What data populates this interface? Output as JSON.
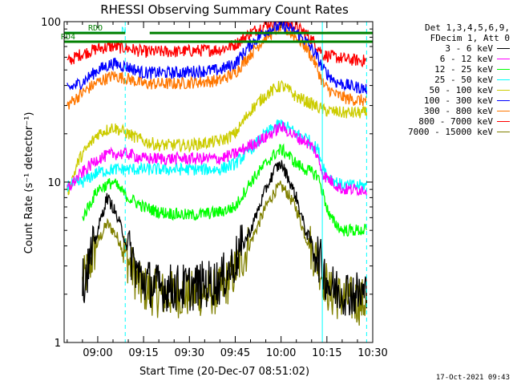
{
  "chart_data": {
    "type": "line",
    "title": "RHESSI Observing Summary Count Rates",
    "xlabel": "Start Time (20-Dec-07 08:51:02)",
    "ylabel": "Count Rate (s⁻¹ detector⁻¹)",
    "yscale": "log",
    "ylim": [
      1,
      100
    ],
    "xlim_minutes": [
      -11,
      90
    ],
    "x_ticks": [
      {
        "t": 0,
        "label": "09:00"
      },
      {
        "t": 15,
        "label": "09:15"
      },
      {
        "t": 30,
        "label": "09:30"
      },
      {
        "t": 45,
        "label": "09:45"
      },
      {
        "t": 60,
        "label": "10:00"
      },
      {
        "t": 75,
        "label": "10:15"
      },
      {
        "t": 90,
        "label": "10:30"
      }
    ],
    "y_ticks": [
      {
        "v": 1,
        "label": "1"
      },
      {
        "v": 10,
        "label": "10"
      },
      {
        "v": 100,
        "label": "100"
      }
    ],
    "legend_header": [
      "Det 1,3,4,5,6,9,",
      "FDecim 1, Att 0"
    ],
    "legend_position": "right",
    "series": [
      {
        "name": "3 - 6 keV",
        "color": "#000000",
        "points": [
          [
            -5,
            2.3
          ],
          [
            -2,
            3.5
          ],
          [
            0,
            5.0
          ],
          [
            3,
            8.0
          ],
          [
            5,
            7.0
          ],
          [
            8,
            5.0
          ],
          [
            10,
            3.8
          ],
          [
            14,
            2.5
          ],
          [
            20,
            2.2
          ],
          [
            30,
            2.2
          ],
          [
            40,
            2.4
          ],
          [
            44,
            3.0
          ],
          [
            50,
            5.0
          ],
          [
            55,
            9.0
          ],
          [
            58,
            12.0
          ],
          [
            60,
            13.0
          ],
          [
            62,
            11.0
          ],
          [
            65,
            8.0
          ],
          [
            68,
            5.0
          ],
          [
            72,
            3.5
          ],
          [
            76,
            2.2
          ],
          [
            85,
            2.0
          ],
          [
            88,
            2.0
          ]
        ]
      },
      {
        "name": "6 - 12 keV",
        "color": "#ff00ff",
        "points": [
          [
            -10,
            9.0
          ],
          [
            -6,
            11
          ],
          [
            0,
            14
          ],
          [
            5,
            15
          ],
          [
            10,
            15
          ],
          [
            15,
            14
          ],
          [
            25,
            14
          ],
          [
            40,
            14
          ],
          [
            45,
            15
          ],
          [
            50,
            17
          ],
          [
            55,
            19
          ],
          [
            58,
            21
          ],
          [
            60,
            22
          ],
          [
            62,
            21
          ],
          [
            65,
            19
          ],
          [
            68,
            18
          ],
          [
            71,
            16
          ],
          [
            74,
            11
          ],
          [
            80,
            9
          ],
          [
            88,
            9
          ]
        ]
      },
      {
        "name": "12 - 25 keV",
        "color": "#00ff00",
        "points": [
          [
            -5,
            6.0
          ],
          [
            0,
            9.0
          ],
          [
            5,
            10
          ],
          [
            10,
            8
          ],
          [
            15,
            7
          ],
          [
            20,
            6.5
          ],
          [
            30,
            6.2
          ],
          [
            40,
            6.5
          ],
          [
            45,
            7
          ],
          [
            50,
            10
          ],
          [
            55,
            13
          ],
          [
            58,
            15
          ],
          [
            60,
            16
          ],
          [
            62,
            15
          ],
          [
            65,
            13
          ],
          [
            68,
            12
          ],
          [
            72,
            11
          ],
          [
            76,
            6
          ],
          [
            80,
            5
          ],
          [
            88,
            5
          ]
        ]
      },
      {
        "name": "25 - 50 keV",
        "color": "#00ffff",
        "points": [
          [
            -10,
            9.5
          ],
          [
            -5,
            10
          ],
          [
            0,
            11.5
          ],
          [
            5,
            12
          ],
          [
            10,
            12
          ],
          [
            20,
            12
          ],
          [
            30,
            12
          ],
          [
            40,
            12
          ],
          [
            45,
            13
          ],
          [
            50,
            16
          ],
          [
            55,
            20
          ],
          [
            58,
            22
          ],
          [
            60,
            23
          ],
          [
            62,
            22
          ],
          [
            65,
            20
          ],
          [
            68,
            19
          ],
          [
            72,
            16
          ],
          [
            75,
            11
          ],
          [
            80,
            9.5
          ],
          [
            88,
            9.5
          ]
        ]
      },
      {
        "name": "50 - 100 keV",
        "color": "#cccc00",
        "points": [
          [
            -10,
            8.5
          ],
          [
            -6,
            14
          ],
          [
            0,
            20
          ],
          [
            5,
            22
          ],
          [
            10,
            20
          ],
          [
            15,
            18
          ],
          [
            20,
            17
          ],
          [
            30,
            17
          ],
          [
            40,
            18
          ],
          [
            45,
            20
          ],
          [
            50,
            28
          ],
          [
            55,
            35
          ],
          [
            58,
            38
          ],
          [
            60,
            40
          ],
          [
            62,
            38
          ],
          [
            65,
            34
          ],
          [
            68,
            32
          ],
          [
            71,
            30
          ],
          [
            74,
            28
          ],
          [
            80,
            27
          ],
          [
            88,
            27
          ]
        ]
      },
      {
        "name": "100 - 300 keV",
        "color": "#0000ff",
        "points": [
          [
            -10,
            38
          ],
          [
            -5,
            42
          ],
          [
            0,
            50
          ],
          [
            5,
            55
          ],
          [
            10,
            52
          ],
          [
            15,
            48
          ],
          [
            25,
            48
          ],
          [
            40,
            50
          ],
          [
            45,
            55
          ],
          [
            50,
            72
          ],
          [
            55,
            88
          ],
          [
            58,
            92
          ],
          [
            60,
            94
          ],
          [
            62,
            92
          ],
          [
            65,
            86
          ],
          [
            68,
            76
          ],
          [
            71,
            64
          ],
          [
            74,
            50
          ],
          [
            78,
            42
          ],
          [
            82,
            40
          ],
          [
            88,
            38
          ]
        ]
      },
      {
        "name": "300 - 800 keV",
        "color": "#ff7700",
        "points": [
          [
            -10,
            30
          ],
          [
            -5,
            36
          ],
          [
            0,
            42
          ],
          [
            5,
            46
          ],
          [
            10,
            44
          ],
          [
            15,
            41
          ],
          [
            25,
            41
          ],
          [
            40,
            43
          ],
          [
            45,
            48
          ],
          [
            50,
            63
          ],
          [
            55,
            80
          ],
          [
            58,
            88
          ],
          [
            60,
            92
          ],
          [
            62,
            88
          ],
          [
            65,
            80
          ],
          [
            68,
            70
          ],
          [
            71,
            56
          ],
          [
            74,
            40
          ],
          [
            78,
            35
          ],
          [
            82,
            33
          ],
          [
            88,
            32
          ]
        ]
      },
      {
        "name": "800 - 7000 keV",
        "color": "#ff0000",
        "points": [
          [
            -10,
            56
          ],
          [
            -6,
            62
          ],
          [
            0,
            68
          ],
          [
            5,
            70
          ],
          [
            10,
            68
          ],
          [
            15,
            65
          ],
          [
            25,
            65
          ],
          [
            40,
            67
          ],
          [
            45,
            72
          ],
          [
            50,
            85
          ],
          [
            55,
            96
          ],
          [
            58,
            100
          ],
          [
            60,
            100
          ],
          [
            62,
            98
          ],
          [
            65,
            92
          ],
          [
            68,
            85
          ],
          [
            71,
            74
          ],
          [
            74,
            62
          ],
          [
            78,
            60
          ],
          [
            82,
            58
          ],
          [
            88,
            57
          ]
        ]
      },
      {
        "name": "7000 - 15000 keV",
        "color": "#808000",
        "points": [
          [
            -5,
            2.3
          ],
          [
            -2,
            3.3
          ],
          [
            0,
            4.2
          ],
          [
            3,
            5.5
          ],
          [
            5,
            5.0
          ],
          [
            8,
            4.0
          ],
          [
            10,
            3.2
          ],
          [
            14,
            2.2
          ],
          [
            20,
            2.0
          ],
          [
            30,
            2.0
          ],
          [
            40,
            2.1
          ],
          [
            44,
            2.6
          ],
          [
            50,
            4.2
          ],
          [
            55,
            7.0
          ],
          [
            58,
            8.8
          ],
          [
            60,
            9.4
          ],
          [
            62,
            8.6
          ],
          [
            65,
            6.8
          ],
          [
            68,
            4.6
          ],
          [
            72,
            3.2
          ],
          [
            76,
            2.0
          ],
          [
            85,
            1.8
          ],
          [
            88,
            1.8
          ]
        ]
      }
    ],
    "attenuator_bars": [
      {
        "label": "N",
        "color": "#00ffff",
        "t_start": -11,
        "t_end": 9
      },
      {
        "label": "",
        "color": "#00ffff",
        "t_start": 75,
        "t_end": 88
      }
    ],
    "state_bars": [
      {
        "label": "RDO",
        "color": "#008000",
        "t_start": -11,
        "t_end": 9,
        "level": 85
      },
      {
        "label": "RD4",
        "color": "#008000",
        "t_start": -11,
        "t_end": 90,
        "level": 75
      },
      {
        "label": "",
        "color": "#008000",
        "t_start": 17,
        "t_end": 90,
        "level": 85
      }
    ],
    "vertical_lines": [
      {
        "t": -11,
        "color": "#00ffff",
        "style": "solid"
      },
      {
        "t": 9,
        "color": "#00ffff",
        "style": "dashed"
      },
      {
        "t": 73.5,
        "color": "#00ffff",
        "style": "solid"
      },
      {
        "t": 88,
        "color": "#00ffff",
        "style": "dashed"
      }
    ],
    "footer_timestamp": "17-Oct-2021 09:43",
    "grid": false
  }
}
